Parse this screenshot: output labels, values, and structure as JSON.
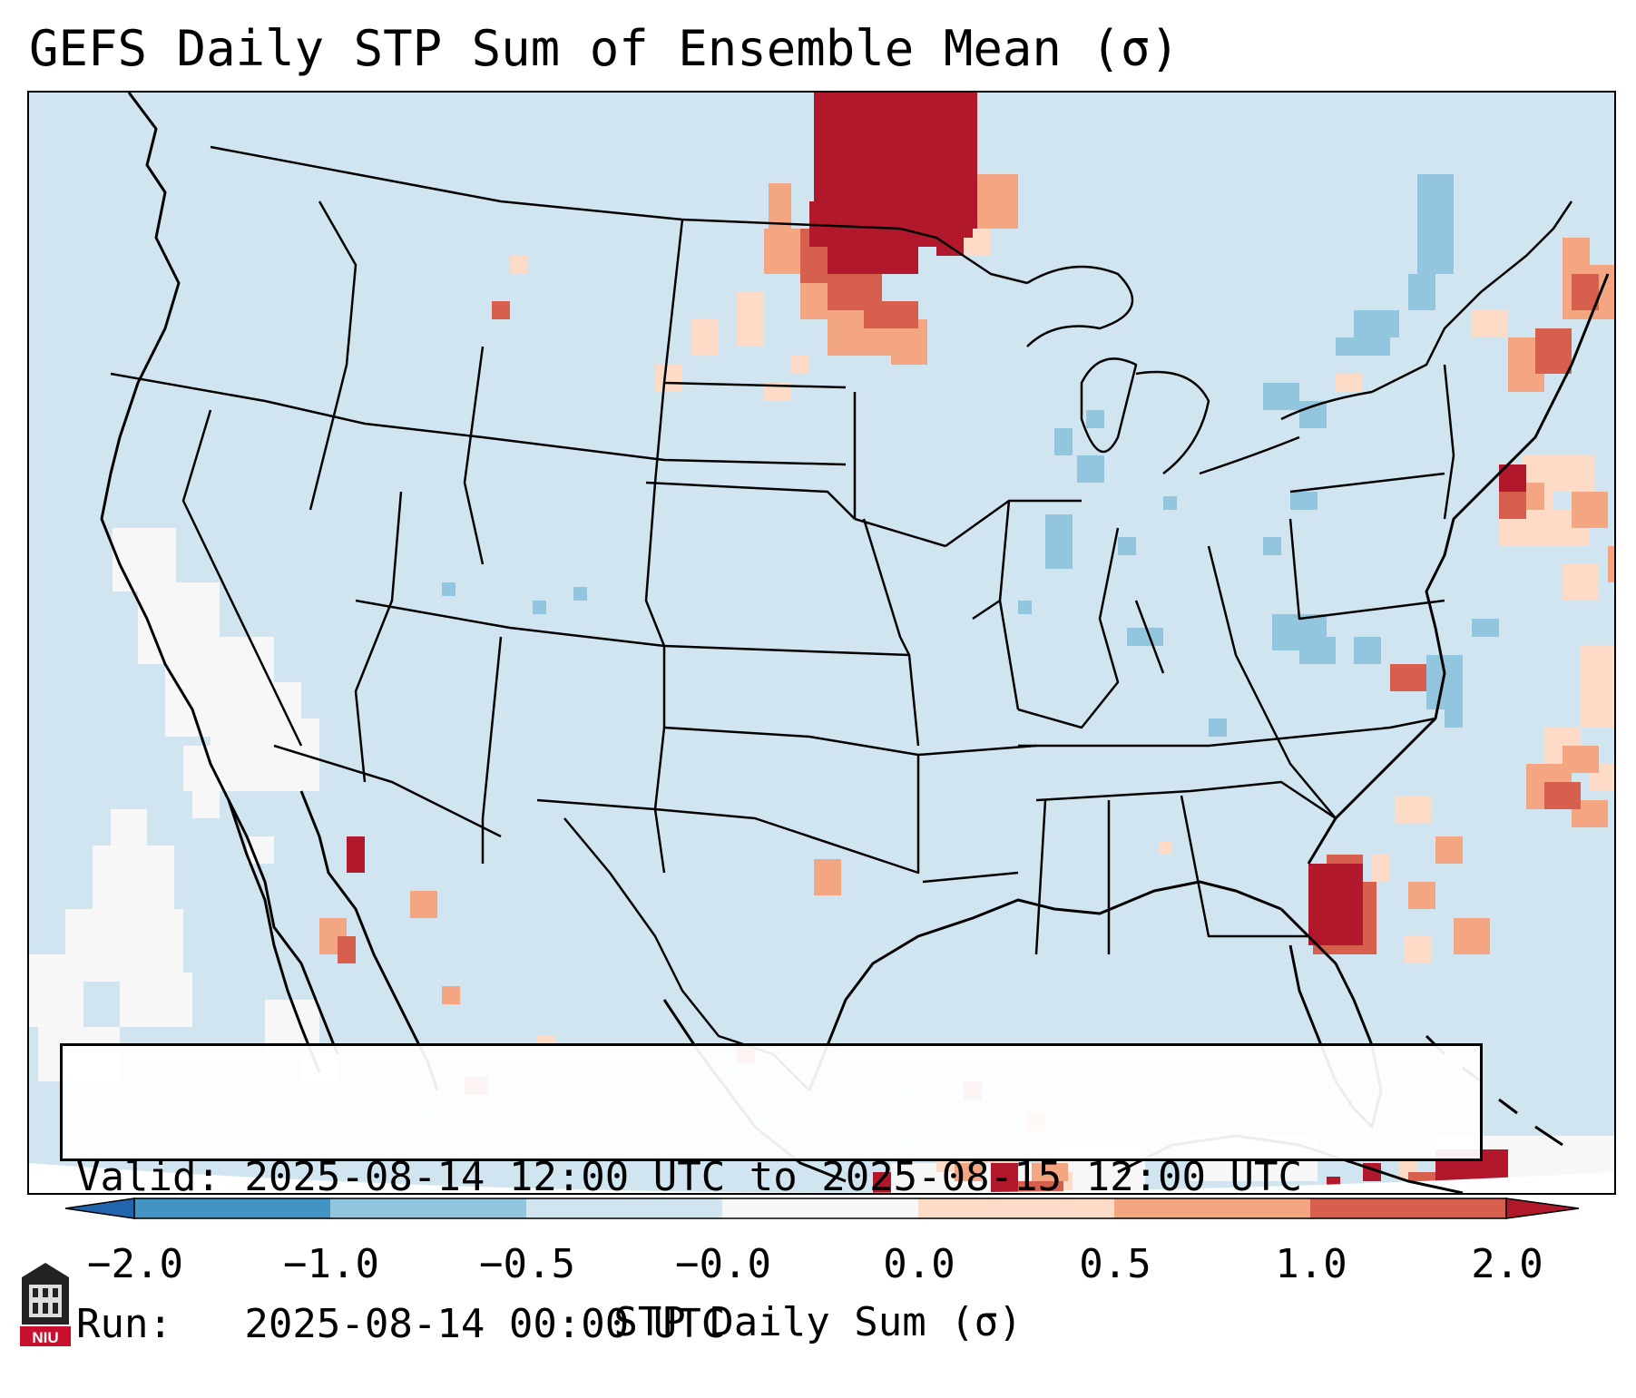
{
  "title": "GEFS Daily STP Sum of Ensemble Mean (σ)",
  "info": {
    "valid_line": "Valid: 2025-08-14 12:00 UTC to 2025-08-15 12:00 UTC",
    "run_line": "Run:   2025-08-14 00:00 UTC"
  },
  "colorbar": {
    "label": "STP Daily Sum (σ)",
    "ticks": [
      "−2.0",
      "−1.0",
      "−0.5",
      "−0.0",
      "0.0",
      "0.5",
      "1.0",
      "2.0"
    ],
    "colors": {
      "extend_low": "#2166ac",
      "bin_1": "#4393c3",
      "bin_2": "#92c5de",
      "bin_3": "#d1e5f0",
      "bin_4": "#f7f7f7",
      "bin_5": "#fddbc7",
      "bin_6": "#f4a582",
      "bin_7": "#d6604d",
      "extend_high": "#b2182b"
    }
  },
  "map": {
    "projection": "Lambert conformal, CONUS",
    "background_color": "#d1e5f0",
    "anomaly_regions": [
      {
        "region": "North Dakota / Manitoba",
        "level": "strong positive"
      },
      {
        "region": "Northeast Florida / Southeast Georgia coast",
        "level": "strong positive"
      },
      {
        "region": "Southern New England",
        "level": "positive"
      },
      {
        "region": "Maine / New Brunswick",
        "level": "positive"
      },
      {
        "region": "Western Atlantic",
        "level": "weak positive"
      },
      {
        "region": "Gulf of California",
        "level": "positive"
      },
      {
        "region": "Caribbean near Cuba / Hispaniola",
        "level": "strong positive"
      },
      {
        "region": "Eastern Pacific offshore California",
        "level": "near zero"
      },
      {
        "region": "Great Lakes / Mid-Atlantic",
        "level": "weak negative"
      }
    ]
  },
  "logo": {
    "text": "NIU",
    "color": "#c8102e"
  }
}
